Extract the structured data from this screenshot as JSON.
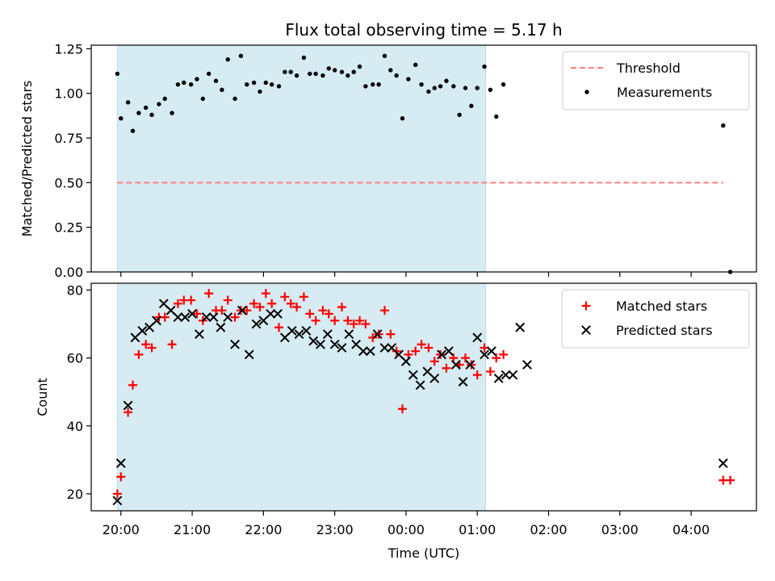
{
  "figure": {
    "title": "Flux total observing time = 5.17 h"
  },
  "chart_data": [
    {
      "type": "scatter",
      "ylabel": "Matched/Predicted stars",
      "xlabel": "",
      "xlim": [
        "19:35",
        "04:55"
      ],
      "ylim": [
        0,
        1.27
      ],
      "yticks": [
        0.0,
        0.25,
        0.5,
        0.75,
        1.0,
        1.25
      ],
      "ytick_labels": [
        "0.00",
        "0.25",
        "0.50",
        "0.75",
        "1.00",
        "1.25"
      ],
      "shaded_span": [
        "19:57",
        "01:07"
      ],
      "legend_position": "upper right",
      "threshold": {
        "name": "Threshold",
        "value": 0.5,
        "x_start": "19:57",
        "x_end": "04:27",
        "color": "#ff7f7f",
        "style": "dashed"
      },
      "series": [
        {
          "name": "Measurements",
          "color": "#000000",
          "marker": "dot",
          "points": [
            [
              "19:57",
              1.11
            ],
            [
              "20:00",
              0.86
            ],
            [
              "20:06",
              0.95
            ],
            [
              "20:10",
              0.79
            ],
            [
              "20:15",
              0.89
            ],
            [
              "20:21",
              0.92
            ],
            [
              "20:26",
              0.88
            ],
            [
              "20:32",
              0.94
            ],
            [
              "20:37",
              0.97
            ],
            [
              "20:43",
              0.89
            ],
            [
              "20:48",
              1.05
            ],
            [
              "20:53",
              1.06
            ],
            [
              "20:59",
              1.05
            ],
            [
              "21:04",
              1.08
            ],
            [
              "21:09",
              0.97
            ],
            [
              "21:14",
              1.11
            ],
            [
              "21:20",
              1.07
            ],
            [
              "21:25",
              1.02
            ],
            [
              "21:30",
              1.19
            ],
            [
              "21:36",
              0.97
            ],
            [
              "21:41",
              1.21
            ],
            [
              "21:46",
              1.05
            ],
            [
              "21:52",
              1.06
            ],
            [
              "21:57",
              1.01
            ],
            [
              "22:02",
              1.06
            ],
            [
              "22:07",
              1.05
            ],
            [
              "22:13",
              1.04
            ],
            [
              "22:18",
              1.12
            ],
            [
              "22:23",
              1.12
            ],
            [
              "22:28",
              1.1
            ],
            [
              "22:34",
              1.2
            ],
            [
              "22:39",
              1.11
            ],
            [
              "22:44",
              1.11
            ],
            [
              "22:50",
              1.1
            ],
            [
              "22:55",
              1.14
            ],
            [
              "23:00",
              1.13
            ],
            [
              "23:06",
              1.12
            ],
            [
              "23:11",
              1.1
            ],
            [
              "23:16",
              1.12
            ],
            [
              "23:21",
              1.15
            ],
            [
              "23:26",
              1.04
            ],
            [
              "23:32",
              1.05
            ],
            [
              "23:37",
              1.05
            ],
            [
              "23:42",
              1.21
            ],
            [
              "23:47",
              1.13
            ],
            [
              "23:52",
              1.1
            ],
            [
              "23:57",
              0.86
            ],
            [
              "24:02",
              1.08
            ],
            [
              "24:08",
              1.16
            ],
            [
              "24:13",
              1.05
            ],
            [
              "24:19",
              1.01
            ],
            [
              "24:24",
              1.03
            ],
            [
              "24:29",
              1.04
            ],
            [
              "24:34",
              1.07
            ],
            [
              "24:40",
              1.04
            ],
            [
              "24:45",
              0.88
            ],
            [
              "24:50",
              1.03
            ],
            [
              "24:55",
              0.93
            ],
            [
              "25:00",
              1.03
            ],
            [
              "25:06",
              1.15
            ],
            [
              "25:11",
              1.02
            ],
            [
              "25:16",
              0.87
            ],
            [
              "25:22",
              1.05
            ],
            [
              "28:27",
              0.82
            ],
            [
              "28:33",
              0.0
            ]
          ]
        }
      ]
    },
    {
      "type": "scatter",
      "ylabel": "Count",
      "xlabel": "Time (UTC)",
      "xlim": [
        "19:35",
        "04:55"
      ],
      "ylim": [
        15,
        82
      ],
      "yticks": [
        20,
        40,
        60,
        80
      ],
      "ytick_labels": [
        "20",
        "40",
        "60",
        "80"
      ],
      "xticks": [
        "20:00",
        "21:00",
        "22:00",
        "23:00",
        "00:00",
        "01:00",
        "02:00",
        "03:00",
        "04:00"
      ],
      "shaded_span": [
        "19:57",
        "01:07"
      ],
      "legend_position": "upper right",
      "series": [
        {
          "name": "Matched stars",
          "color": "#ff0000",
          "marker": "plus",
          "points": [
            [
              "19:57",
              20
            ],
            [
              "20:00",
              25
            ],
            [
              "20:06",
              44
            ],
            [
              "20:10",
              52
            ],
            [
              "20:15",
              61
            ],
            [
              "20:21",
              64
            ],
            [
              "20:26",
              63
            ],
            [
              "20:32",
              72
            ],
            [
              "20:37",
              72
            ],
            [
              "20:43",
              64
            ],
            [
              "20:48",
              76
            ],
            [
              "20:53",
              77
            ],
            [
              "20:59",
              77
            ],
            [
              "21:04",
              73
            ],
            [
              "21:09",
              71
            ],
            [
              "21:14",
              79
            ],
            [
              "21:20",
              74
            ],
            [
              "21:25",
              74
            ],
            [
              "21:30",
              77
            ],
            [
              "21:36",
              72
            ],
            [
              "21:41",
              74
            ],
            [
              "21:46",
              74
            ],
            [
              "21:52",
              76
            ],
            [
              "21:57",
              75
            ],
            [
              "22:02",
              79
            ],
            [
              "22:07",
              76
            ],
            [
              "22:13",
              69
            ],
            [
              "22:18",
              78
            ],
            [
              "22:23",
              76
            ],
            [
              "22:28",
              75
            ],
            [
              "22:34",
              78
            ],
            [
              "22:39",
              73
            ],
            [
              "22:44",
              71
            ],
            [
              "22:50",
              74
            ],
            [
              "22:55",
              73
            ],
            [
              "23:00",
              71
            ],
            [
              "23:06",
              75
            ],
            [
              "23:11",
              71
            ],
            [
              "23:16",
              70
            ],
            [
              "23:21",
              71
            ],
            [
              "23:26",
              70
            ],
            [
              "23:32",
              66
            ],
            [
              "23:37",
              67
            ],
            [
              "23:42",
              74
            ],
            [
              "23:47",
              67
            ],
            [
              "23:52",
              62
            ],
            [
              "23:57",
              45
            ],
            [
              "24:02",
              61
            ],
            [
              "24:08",
              62
            ],
            [
              "24:13",
              64
            ],
            [
              "24:19",
              63
            ],
            [
              "24:24",
              59
            ],
            [
              "24:29",
              61
            ],
            [
              "24:34",
              57
            ],
            [
              "24:40",
              60
            ],
            [
              "24:45",
              58
            ],
            [
              "24:50",
              60
            ],
            [
              "24:55",
              58
            ],
            [
              "25:00",
              55
            ],
            [
              "25:06",
              63
            ],
            [
              "25:11",
              56
            ],
            [
              "25:16",
              60
            ],
            [
              "25:22",
              61
            ],
            [
              "28:27",
              24
            ],
            [
              "28:33",
              24
            ]
          ]
        },
        {
          "name": "Predicted stars",
          "color": "#000000",
          "marker": "x",
          "points": [
            [
              "19:57",
              18
            ],
            [
              "20:00",
              29
            ],
            [
              "20:06",
              46
            ],
            [
              "20:12",
              66
            ],
            [
              "20:18",
              68
            ],
            [
              "20:24",
              69
            ],
            [
              "20:30",
              71
            ],
            [
              "20:36",
              76
            ],
            [
              "20:42",
              74
            ],
            [
              "20:48",
              72
            ],
            [
              "20:54",
              72
            ],
            [
              "21:00",
              73
            ],
            [
              "21:06",
              67
            ],
            [
              "21:12",
              72
            ],
            [
              "21:18",
              72
            ],
            [
              "21:24",
              69
            ],
            [
              "21:30",
              72
            ],
            [
              "21:36",
              64
            ],
            [
              "21:42",
              74
            ],
            [
              "21:48",
              61
            ],
            [
              "21:54",
              70
            ],
            [
              "22:00",
              71
            ],
            [
              "22:06",
              73
            ],
            [
              "22:12",
              73
            ],
            [
              "22:18",
              66
            ],
            [
              "22:24",
              68
            ],
            [
              "22:30",
              67
            ],
            [
              "22:36",
              68
            ],
            [
              "22:42",
              65
            ],
            [
              "22:48",
              64
            ],
            [
              "22:54",
              67
            ],
            [
              "23:00",
              64
            ],
            [
              "23:06",
              63
            ],
            [
              "23:12",
              67
            ],
            [
              "23:18",
              64
            ],
            [
              "23:24",
              62
            ],
            [
              "23:30",
              62
            ],
            [
              "23:36",
              67
            ],
            [
              "23:42",
              63
            ],
            [
              "23:48",
              63
            ],
            [
              "23:54",
              61
            ],
            [
              "24:00",
              59
            ],
            [
              "24:06",
              55
            ],
            [
              "24:12",
              52
            ],
            [
              "24:18",
              56
            ],
            [
              "24:24",
              54
            ],
            [
              "24:30",
              61
            ],
            [
              "24:36",
              62
            ],
            [
              "24:42",
              58
            ],
            [
              "24:48",
              53
            ],
            [
              "24:54",
              58
            ],
            [
              "25:00",
              66
            ],
            [
              "25:06",
              61
            ],
            [
              "25:12",
              62
            ],
            [
              "25:18",
              54
            ],
            [
              "25:24",
              55
            ],
            [
              "25:30",
              55
            ],
            [
              "25:36",
              69
            ],
            [
              "25:42",
              58
            ],
            [
              "28:27",
              29
            ]
          ]
        }
      ]
    }
  ]
}
